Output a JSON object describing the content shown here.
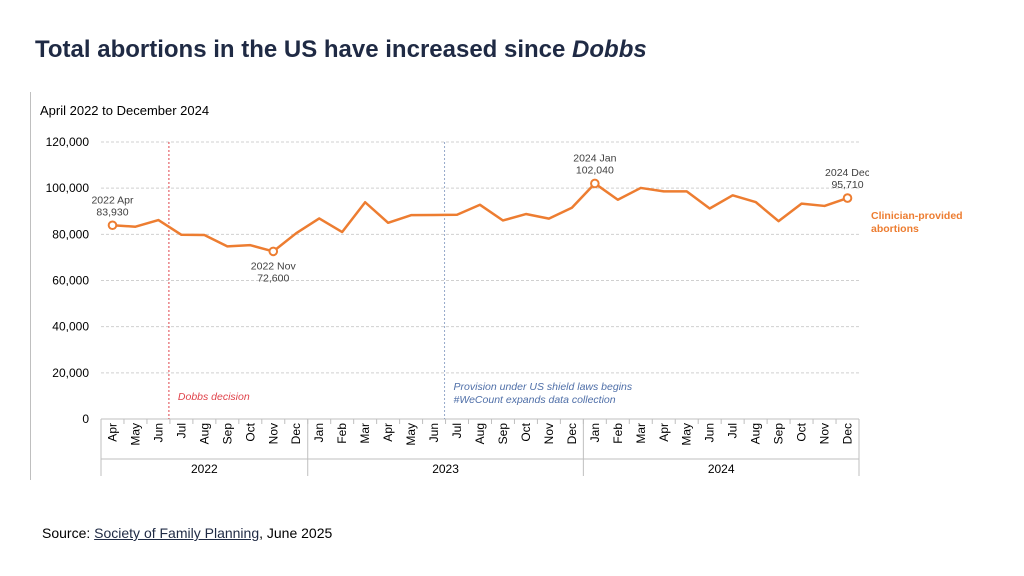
{
  "page": {
    "title_main": "Total abortions in the US have increased since ",
    "title_emph": "Dobbs",
    "source_prefix": "Source: ",
    "source_link": "Society of Family Planning",
    "source_suffix": ", June 2025"
  },
  "chart_data": {
    "type": "line",
    "subtitle": "April 2022 to December 2024",
    "ylim": [
      0,
      120000
    ],
    "yticks": [
      "0",
      "20,000",
      "40,000",
      "60,000",
      "80,000",
      "100,000",
      "120,000"
    ],
    "ytick_values": [
      0,
      20000,
      40000,
      60000,
      80000,
      100000,
      120000
    ],
    "grid": true,
    "months": [
      "Apr",
      "May",
      "Jun",
      "Jul",
      "Aug",
      "Sep",
      "Oct",
      "Nov",
      "Dec",
      "Jan",
      "Feb",
      "Mar",
      "Apr",
      "May",
      "Jun",
      "Jul",
      "Aug",
      "Sep",
      "Oct",
      "Nov",
      "Dec",
      "Jan",
      "Feb",
      "Mar",
      "Apr",
      "May",
      "Jun",
      "Jul",
      "Aug",
      "Sep",
      "Oct",
      "Nov",
      "Dec"
    ],
    "years": [
      {
        "label": "2022",
        "start": 0,
        "end": 8
      },
      {
        "label": "2023",
        "start": 9,
        "end": 20
      },
      {
        "label": "2024",
        "start": 21,
        "end": 32
      }
    ],
    "series": [
      {
        "name": "Clinician-provided abortions",
        "color": "#ed7d31",
        "values": [
          83930,
          83300,
          86200,
          79800,
          79700,
          74800,
          75300,
          72600,
          80500,
          86900,
          81000,
          93900,
          85000,
          88300,
          88400,
          88500,
          92800,
          86000,
          88800,
          86800,
          91500,
          102040,
          95000,
          100100,
          98600,
          98600,
          91200,
          96900,
          94000,
          85700,
          93300,
          92300,
          95710
        ]
      }
    ],
    "annotations": [
      {
        "index": 0,
        "line1": "2022 Apr",
        "line2": "83,930",
        "placement": "above"
      },
      {
        "index": 7,
        "line1": "2022 Nov",
        "line2": "72,600",
        "placement": "below"
      },
      {
        "index": 21,
        "line1": "2024 Jan",
        "line2": "102,040",
        "placement": "above"
      },
      {
        "index": 32,
        "line1": "2024 Dec",
        "line2": "95,710",
        "placement": "above"
      }
    ],
    "events": [
      {
        "after_index": 2,
        "color": "#e0434b",
        "lines": [
          "Dobbs decision"
        ]
      },
      {
        "after_index": 14,
        "color": "#4f6fa8",
        "lines": [
          "Provision under US shield laws begins",
          "#WeCount expands data collection"
        ]
      }
    ]
  }
}
